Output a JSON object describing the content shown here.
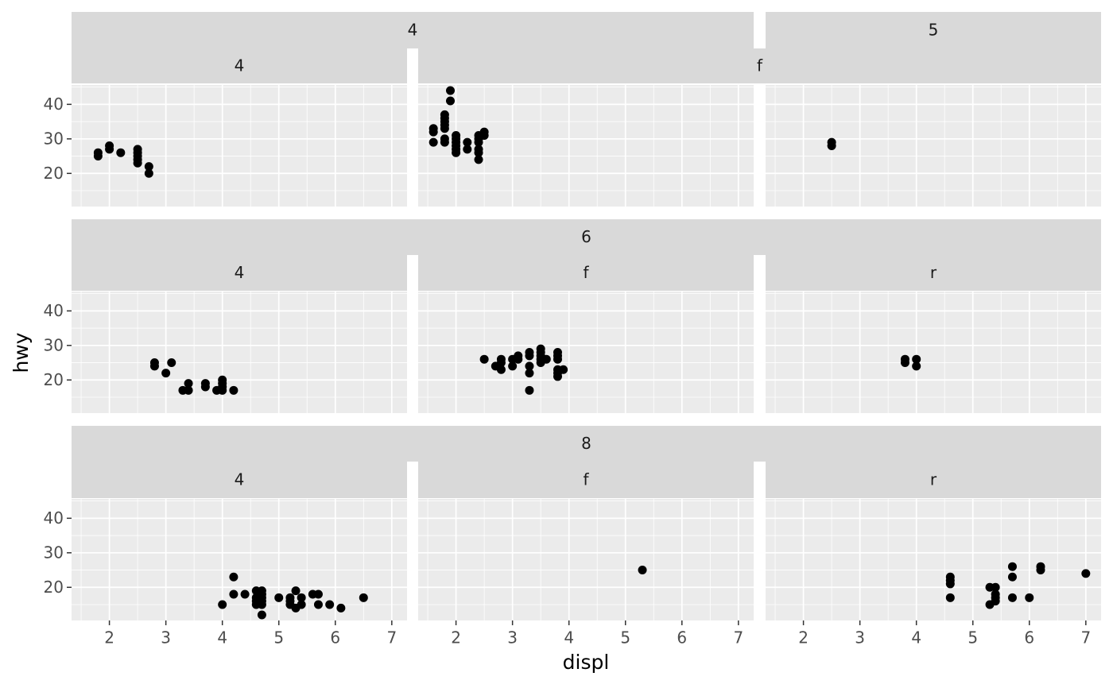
{
  "chart_data": {
    "type": "scatter",
    "xlabel": "displ",
    "ylabel": "hwy",
    "xlim": [
      1.33,
      7.27
    ],
    "ylim": [
      10.4,
      45.6
    ],
    "xticks": [
      2,
      3,
      4,
      5,
      6,
      7
    ],
    "yticks": [
      20,
      30,
      40
    ],
    "color": "#000000",
    "grid": true,
    "rows": [
      {
        "strips": [
          [
            "4",
            "5"
          ],
          [
            "4",
            "f"
          ]
        ],
        "panels": [
          {
            "x": [
              1.8,
              1.8,
              2.0,
              2.0,
              2.2,
              2.5,
              2.5,
              2.5,
              2.5,
              2.5,
              2.7,
              2.7
            ],
            "y": [
              25,
              26,
              27,
              28,
              26,
              23,
              24,
              25,
              26,
              27,
              20,
              22
            ]
          },
          {
            "x": [
              1.6,
              1.6,
              1.6,
              1.8,
              1.8,
              1.8,
              1.8,
              1.8,
              1.8,
              1.8,
              1.9,
              1.9,
              2.0,
              2.0,
              2.0,
              2.0,
              2.0,
              2.0,
              2.2,
              2.2,
              2.4,
              2.4,
              2.4,
              2.4,
              2.4,
              2.4,
              2.5,
              2.5
            ],
            "y": [
              33,
              32,
              29,
              29,
              30,
              35,
              36,
              37,
              33,
              34,
              44,
              41,
              26,
              28,
              29,
              30,
              31,
              27,
              27,
              29,
              24,
              26,
              27,
              29,
              30,
              31,
              31,
              32
            ]
          },
          {
            "x": [
              2.5,
              2.5
            ],
            "y": [
              28,
              29
            ]
          }
        ]
      },
      {
        "strips": [
          [
            "6"
          ],
          [
            "4",
            "f",
            "r"
          ]
        ],
        "panels": [
          {
            "x": [
              2.8,
              2.8,
              3.1,
              3.0,
              3.3,
              3.4,
              3.4,
              3.7,
              3.7,
              3.9,
              4.0,
              4.0,
              4.0,
              4.0,
              4.2
            ],
            "y": [
              24,
              25,
              25,
              22,
              17,
              17,
              19,
              18,
              19,
              17,
              17,
              18,
              19,
              20,
              17
            ]
          },
          {
            "x": [
              2.5,
              2.7,
              2.8,
              2.8,
              2.8,
              3.0,
              3.0,
              3.1,
              3.1,
              3.3,
              3.3,
              3.3,
              3.3,
              3.3,
              3.5,
              3.5,
              3.5,
              3.5,
              3.5,
              3.6,
              3.8,
              3.8,
              3.8,
              3.8,
              3.8,
              3.8,
              3.9
            ],
            "y": [
              26,
              24,
              23,
              25,
              26,
              24,
              26,
              26,
              27,
              17,
              22,
              24,
              27,
              28,
              25,
              26,
              27,
              28,
              29,
              26,
              21,
              22,
              23,
              26,
              27,
              28,
              23
            ]
          },
          {
            "x": [
              3.8,
              3.8,
              4.0,
              4.0
            ],
            "y": [
              25,
              26,
              24,
              26
            ]
          }
        ]
      },
      {
        "strips": [
          [
            "8"
          ],
          [
            "4",
            "f",
            "r"
          ]
        ],
        "panels": [
          {
            "x": [
              4.0,
              4.2,
              4.2,
              4.4,
              4.6,
              4.6,
              4.6,
              4.6,
              4.7,
              4.7,
              4.7,
              4.7,
              4.7,
              4.7,
              5.0,
              5.2,
              5.2,
              5.2,
              5.3,
              5.3,
              5.4,
              5.4,
              5.6,
              5.7,
              5.7,
              5.9,
              6.1,
              6.5
            ],
            "y": [
              15,
              23,
              18,
              18,
              17,
              19,
              16,
              15,
              12,
              15,
              16,
              17,
              18,
              19,
              17,
              15,
              16,
              17,
              14,
              19,
              15,
              17,
              18,
              18,
              15,
              15,
              14,
              17
            ]
          },
          {
            "x": [
              5.3
            ],
            "y": [
              25
            ]
          },
          {
            "x": [
              4.6,
              4.6,
              4.6,
              4.6,
              5.3,
              5.3,
              5.4,
              5.4,
              5.4,
              5.4,
              5.7,
              5.7,
              5.7,
              6.0,
              6.2,
              6.2,
              7.0
            ],
            "y": [
              17,
              21,
              22,
              23,
              15,
              20,
              16,
              17,
              18,
              20,
              17,
              23,
              26,
              17,
              25,
              26,
              24
            ]
          }
        ]
      }
    ]
  }
}
